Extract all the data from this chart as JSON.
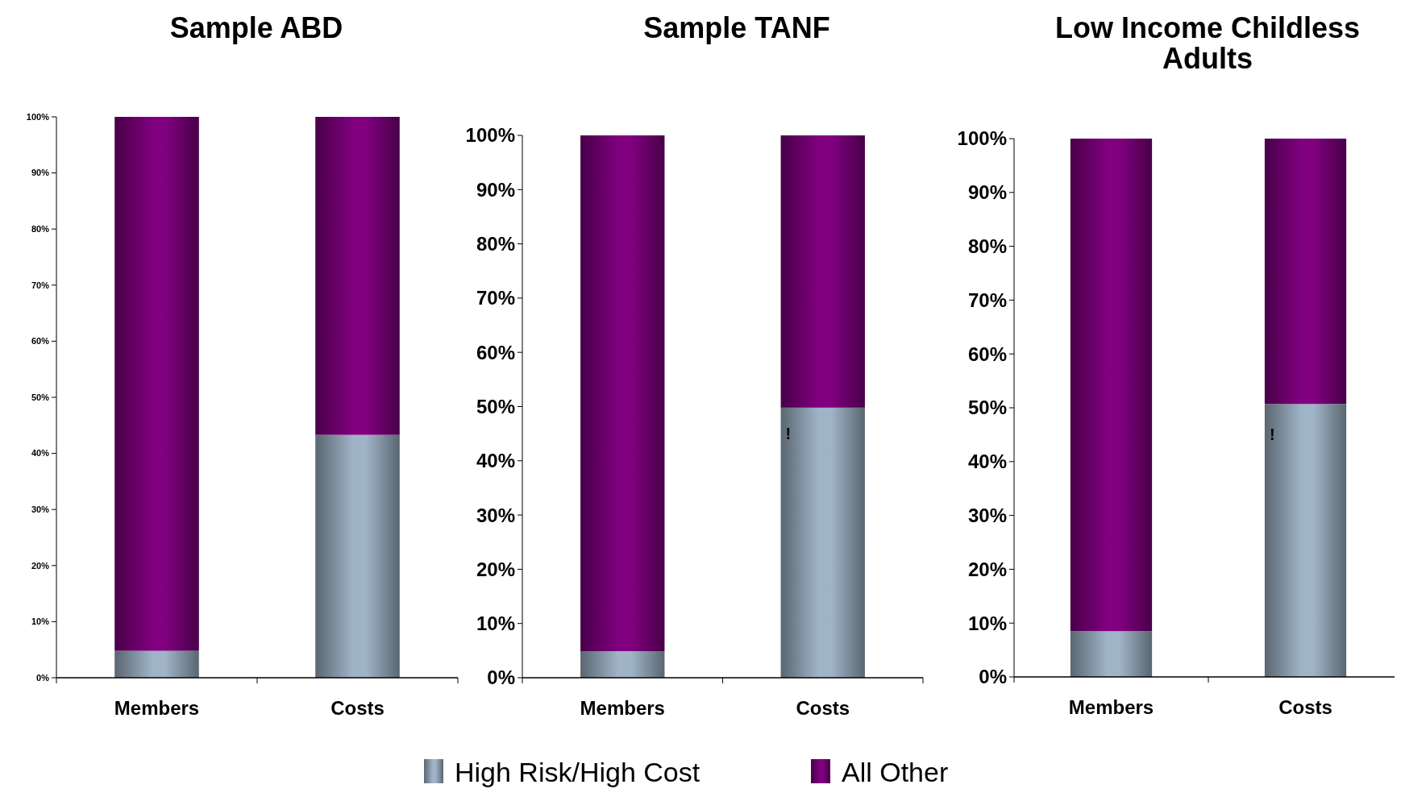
{
  "chart_data": [
    {
      "type": "bar",
      "title": "Sample ABD",
      "categories": [
        "Members",
        "Costs"
      ],
      "stacked": true,
      "ylim": [
        0,
        100
      ],
      "yticks": [
        {
          "value": 0,
          "label": "0%"
        },
        {
          "value": 10,
          "label": "10%"
        },
        {
          "value": 20,
          "label": "20%"
        },
        {
          "value": 30,
          "label": "30%"
        },
        {
          "value": 40,
          "label": "40%"
        },
        {
          "value": 50,
          "label": "50%"
        },
        {
          "value": 60,
          "label": "60%"
        },
        {
          "value": 70,
          "label": "70%"
        },
        {
          "value": 80,
          "label": "80%"
        },
        {
          "value": 90,
          "label": "90%"
        },
        {
          "value": 100,
          "label": "100%"
        }
      ],
      "series": [
        {
          "color": "#a0b4c8",
          "values": [
            4.8,
            43.3
          ]
        },
        {
          "color": "#800080",
          "values": [
            95.2,
            56.7
          ]
        }
      ]
    },
    {
      "type": "bar",
      "title": "Sample TANF",
      "categories": [
        "Members",
        "Costs"
      ],
      "stacked": true,
      "legend": "bottom",
      "ylim": [
        0,
        100
      ],
      "yticks": [
        {
          "value": 0,
          "label": "0%"
        },
        {
          "value": 10,
          "label": "10%"
        },
        {
          "value": 20,
          "label": "20%"
        },
        {
          "value": 30,
          "label": "30%"
        },
        {
          "value": 40,
          "label": "40%"
        },
        {
          "value": 50,
          "label": "50%"
        },
        {
          "value": 60,
          "label": "60%"
        },
        {
          "value": 70,
          "label": "70%"
        },
        {
          "value": 80,
          "label": "80%"
        },
        {
          "value": 90,
          "label": "90%"
        },
        {
          "value": 100,
          "label": "100%"
        }
      ],
      "annotations": [
        "!"
      ],
      "series": [
        {
          "name": "High Risk/High Cost",
          "color": "#a0b4c8",
          "values": [
            4.9,
            49.8
          ]
        },
        {
          "name": "All Other",
          "color": "#800080",
          "values": [
            95.1,
            50.2
          ]
        }
      ]
    },
    {
      "type": "bar",
      "title": "Low Income Childless Adults",
      "categories": [
        "Members",
        "Costs"
      ],
      "stacked": true,
      "ylim": [
        0,
        100
      ],
      "yticks": [
        {
          "value": 0,
          "label": "0%"
        },
        {
          "value": 10,
          "label": "10%"
        },
        {
          "value": 20,
          "label": "20%"
        },
        {
          "value": 30,
          "label": "30%"
        },
        {
          "value": 40,
          "label": "40%"
        },
        {
          "value": 50,
          "label": "50%"
        },
        {
          "value": 60,
          "label": "60%"
        },
        {
          "value": 70,
          "label": "70%"
        },
        {
          "value": 80,
          "label": "80%"
        },
        {
          "value": 90,
          "label": "90%"
        },
        {
          "value": 100,
          "label": "100%"
        }
      ],
      "annotations": [
        "!"
      ],
      "series": [
        {
          "color": "#a0b4c8",
          "values": [
            8.5,
            50.7
          ]
        },
        {
          "color": "#800080",
          "values": [
            91.5,
            49.3
          ]
        }
      ]
    }
  ]
}
